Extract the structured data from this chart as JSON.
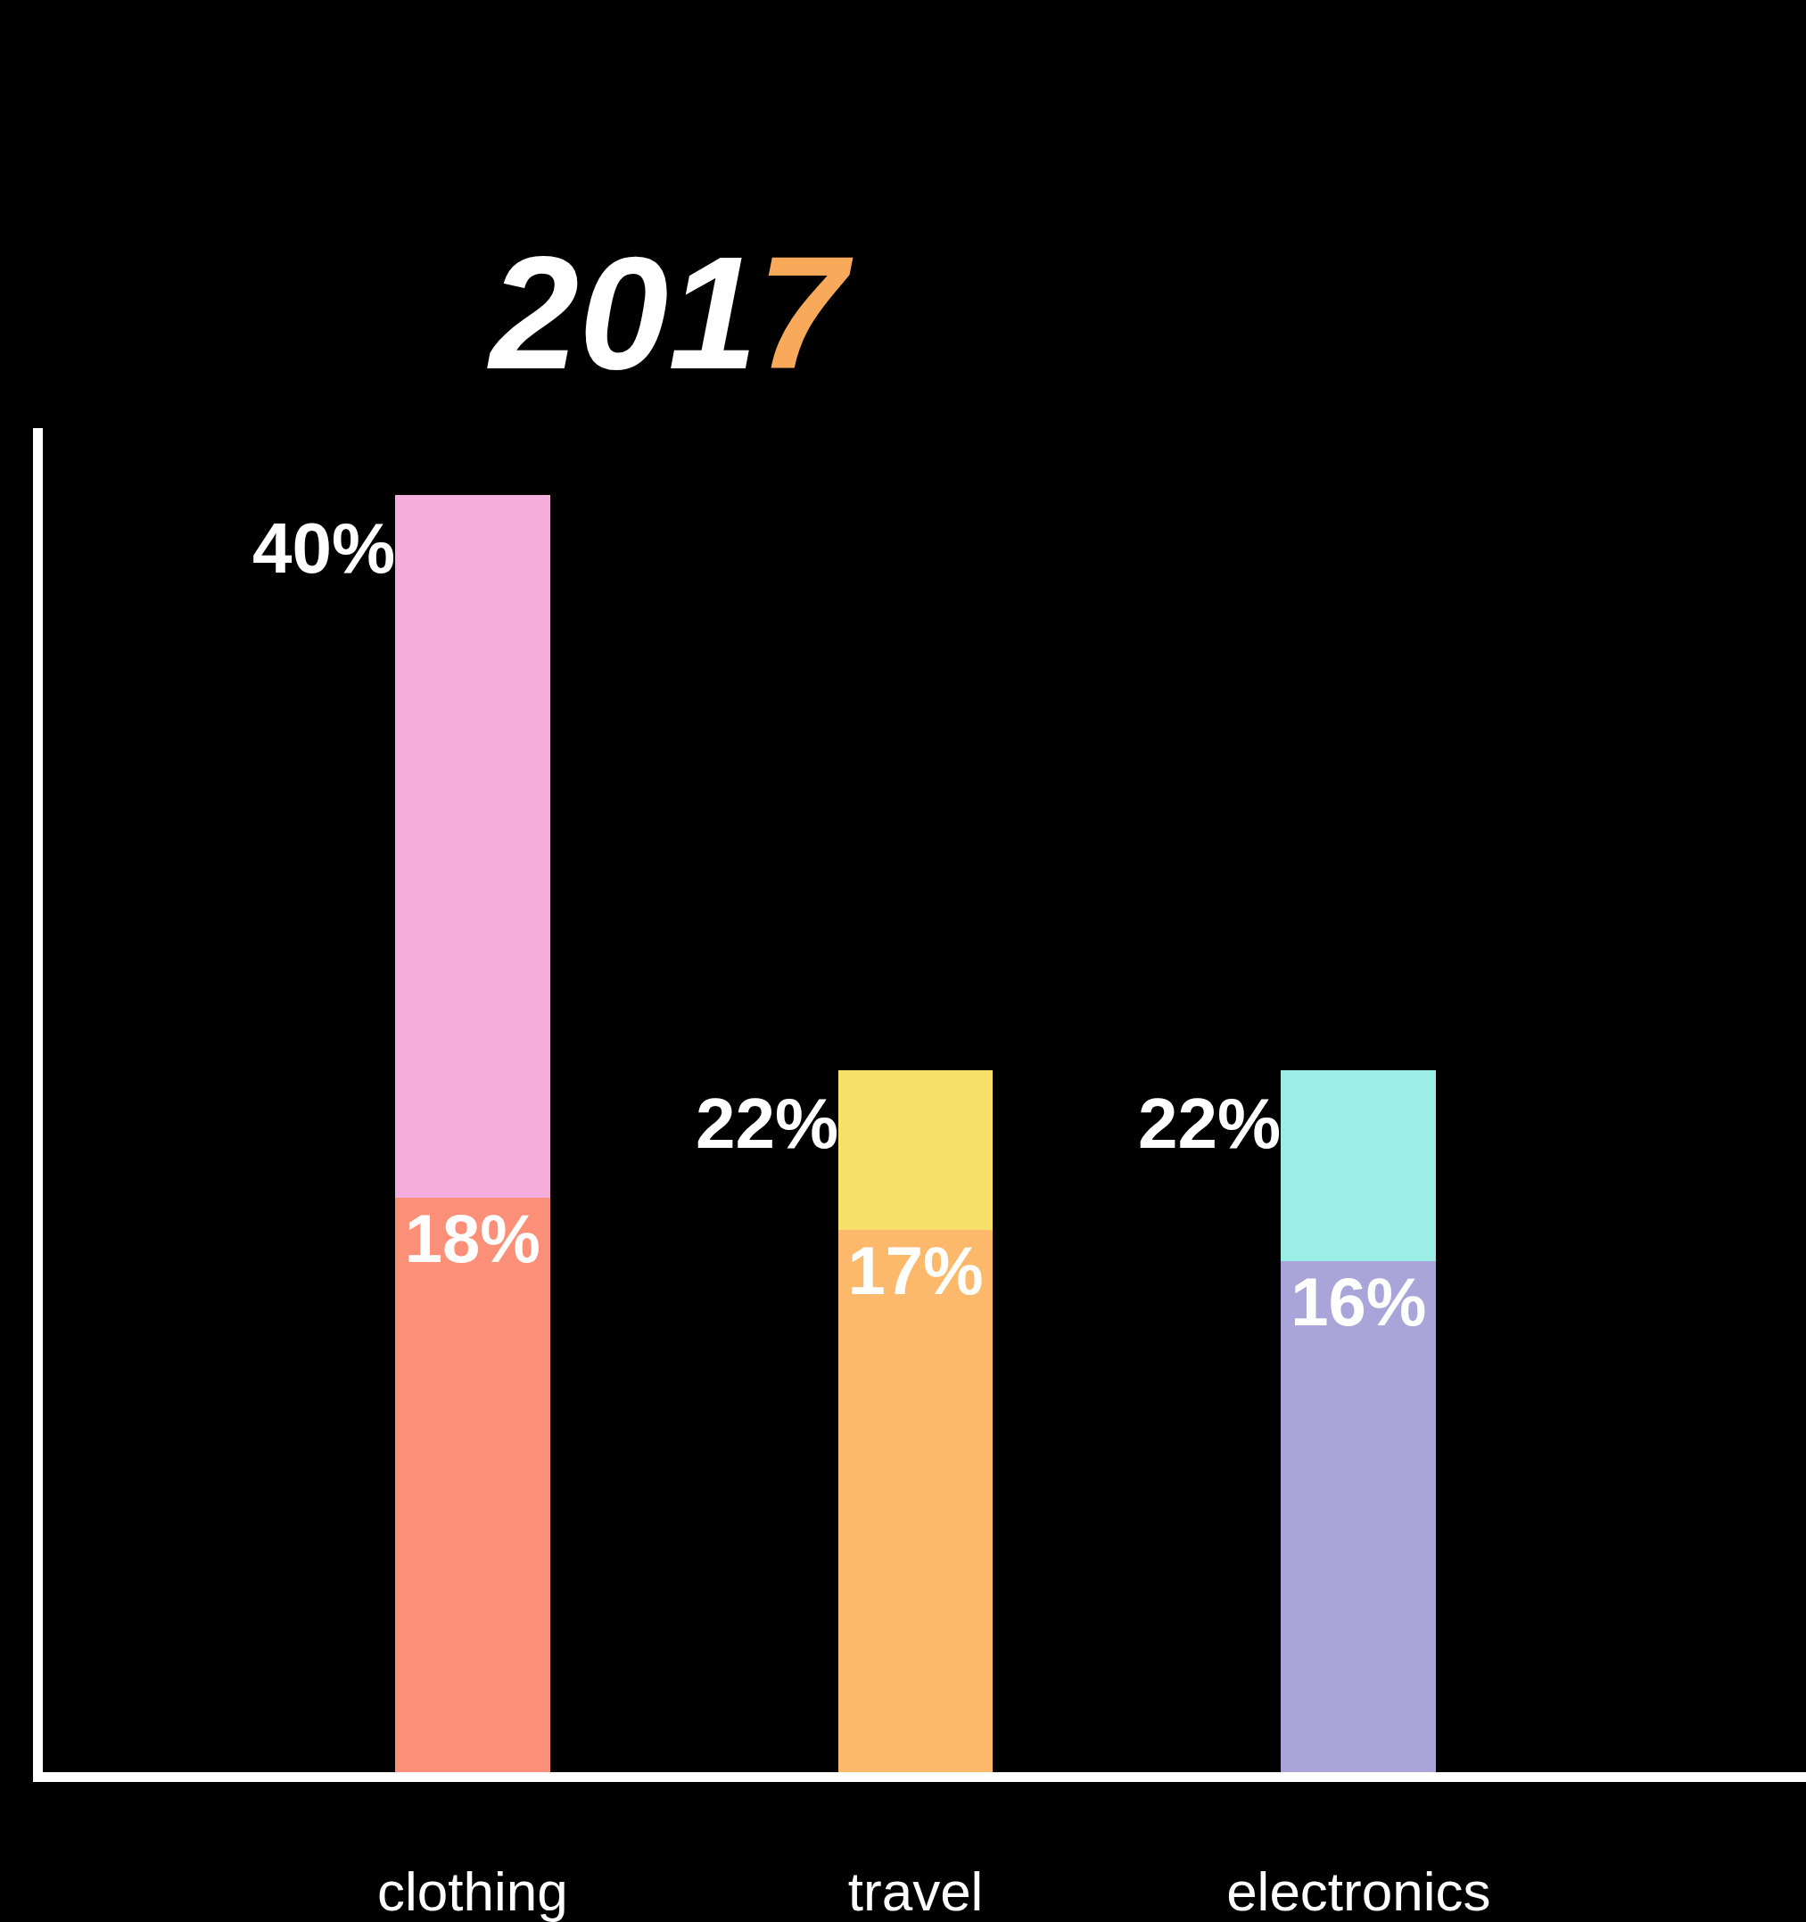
{
  "chart_data": {
    "type": "bar",
    "title": "2017",
    "stacked": true,
    "categories": [
      "clothing",
      "travel",
      "electronics"
    ],
    "series": [
      {
        "colors": [
          "#fb8f78",
          "#fdb96b",
          "#a9a5d9"
        ],
        "values": [
          18,
          17,
          16
        ],
        "value_labels": [
          "18%",
          "17%",
          "16%"
        ]
      },
      {
        "colors": [
          "#f4aedb",
          "#f7e06a",
          "#9beee6"
        ],
        "values": [
          22,
          5,
          6
        ]
      }
    ],
    "totals": [
      "40%",
      "22%",
      "22%"
    ],
    "tick_labels": "x",
    "grid": false
  }
}
